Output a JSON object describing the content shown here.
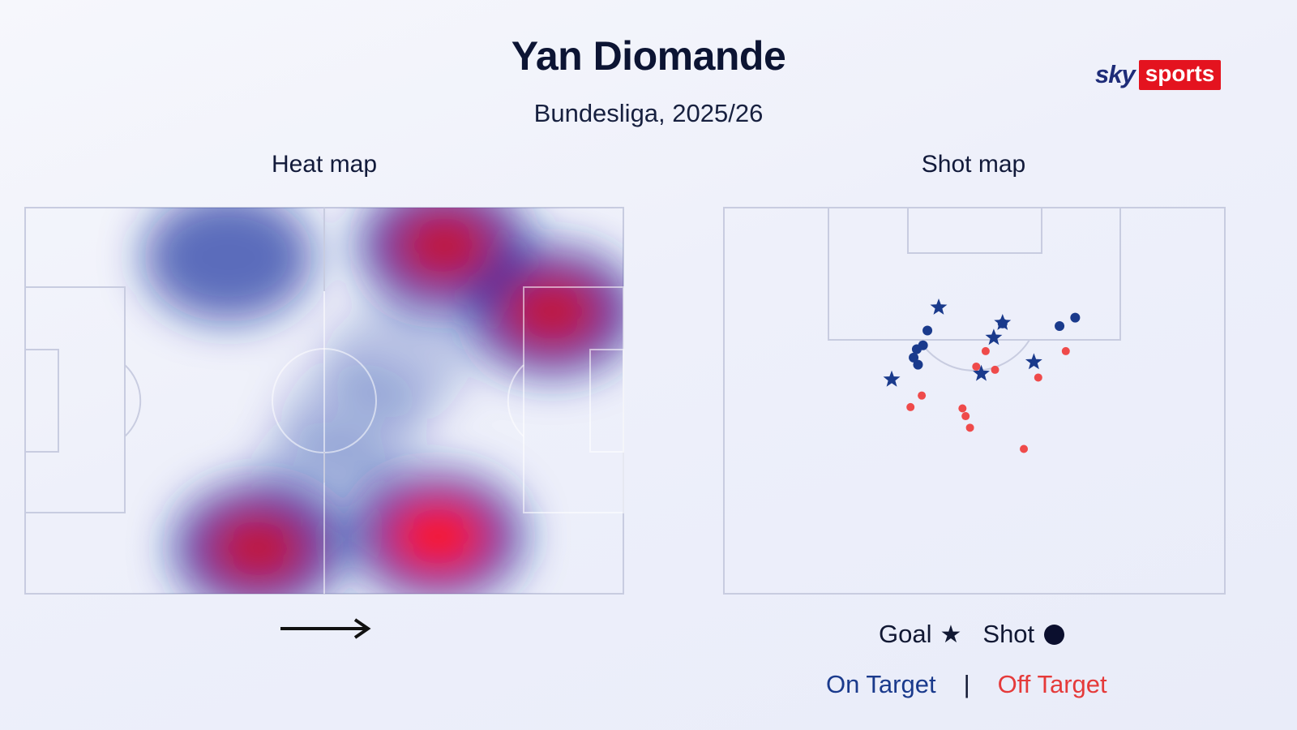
{
  "header": {
    "title": "Yan Diomande",
    "subtitle": "Bundesliga, 2025/26",
    "logo_sky": "sky",
    "logo_sports": "sports"
  },
  "heat_map": {
    "title": "Heat map",
    "direction_icon": "right-arrow-icon",
    "color_scale": [
      "#0a2a9c",
      "#c4102a",
      "#ff1010"
    ],
    "hot_zones": [
      {
        "pitch_x": 0.34,
        "pitch_y": 0.13,
        "intensity": 0.55
      },
      {
        "pitch_x": 0.7,
        "pitch_y": 0.1,
        "intensity": 0.95
      },
      {
        "pitch_x": 0.88,
        "pitch_y": 0.27,
        "intensity": 0.95
      },
      {
        "pitch_x": 0.39,
        "pitch_y": 0.88,
        "intensity": 0.95
      },
      {
        "pitch_x": 0.69,
        "pitch_y": 0.85,
        "intensity": 1.0
      }
    ]
  },
  "shot_map": {
    "title": "Shot map",
    "colors": {
      "on_target": "#1a3a8c",
      "off_target": "#ef4a4a"
    },
    "shots": [
      {
        "x": 34.3,
        "y": 104.5,
        "outcome": "goal"
      },
      {
        "x": 26.8,
        "y": 93.3,
        "outcome": "goal"
      },
      {
        "x": 41.1,
        "y": 94.2,
        "outcome": "goal"
      },
      {
        "x": 43.1,
        "y": 99.8,
        "outcome": "goal"
      },
      {
        "x": 44.5,
        "y": 102.1,
        "outcome": "goal"
      },
      {
        "x": 49.5,
        "y": 96.0,
        "outcome": "goal"
      },
      {
        "x": 32.5,
        "y": 100.9,
        "outcome": "shot_on"
      },
      {
        "x": 31.8,
        "y": 98.6,
        "outcome": "shot_on"
      },
      {
        "x": 31.0,
        "y": 95.6,
        "outcome": "shot_on"
      },
      {
        "x": 30.3,
        "y": 96.7,
        "outcome": "shot_on"
      },
      {
        "x": 30.8,
        "y": 98.0,
        "outcome": "shot_on"
      },
      {
        "x": 44.5,
        "y": 102.0,
        "outcome": "shot_on"
      },
      {
        "x": 53.6,
        "y": 101.6,
        "outcome": "shot_on"
      },
      {
        "x": 56.1,
        "y": 102.9,
        "outcome": "shot_on"
      },
      {
        "x": 50.2,
        "y": 93.6,
        "outcome": "shot_off"
      },
      {
        "x": 40.3,
        "y": 95.3,
        "outcome": "shot_off"
      },
      {
        "x": 41.8,
        "y": 97.7,
        "outcome": "shot_off"
      },
      {
        "x": 43.3,
        "y": 94.8,
        "outcome": "shot_off"
      },
      {
        "x": 54.6,
        "y": 97.7,
        "outcome": "shot_off"
      },
      {
        "x": 29.8,
        "y": 89.0,
        "outcome": "shot_off"
      },
      {
        "x": 31.6,
        "y": 90.8,
        "outcome": "shot_off"
      },
      {
        "x": 38.1,
        "y": 88.8,
        "outcome": "shot_off"
      },
      {
        "x": 38.6,
        "y": 87.6,
        "outcome": "shot_off"
      },
      {
        "x": 39.3,
        "y": 85.8,
        "outcome": "shot_off"
      },
      {
        "x": 47.9,
        "y": 82.5,
        "outcome": "shot_off"
      }
    ]
  },
  "legend": {
    "goal_label": "Goal",
    "goal_symbol": "★",
    "shot_label": "Shot",
    "shot_icon": "filled-circle-icon",
    "on_target_label": "On Target",
    "separator": "|",
    "off_target_label": "Off Target"
  }
}
